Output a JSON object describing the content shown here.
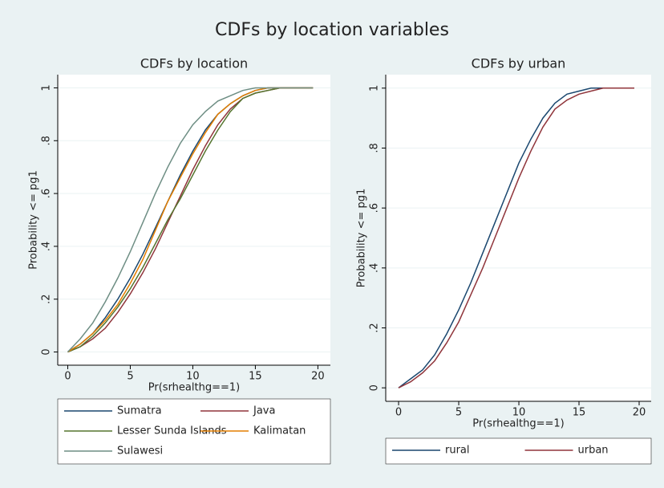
{
  "title": "CDFs by location variables",
  "chart_data": [
    {
      "type": "line",
      "title": "CDFs by location",
      "x_label": "Pr(srhealthg==1)",
      "y_label": "Probability <= pg1",
      "x": [
        0,
        1,
        2,
        3,
        4,
        5,
        6,
        7,
        8,
        9,
        10,
        11,
        12,
        13,
        14,
        15,
        16,
        17,
        18,
        19,
        19.6
      ],
      "xlim": [
        -0.8,
        21
      ],
      "xticks": [
        0,
        5,
        10,
        15,
        20
      ],
      "ylim": [
        -0.05,
        1.05
      ],
      "yticks": [
        0,
        {
          "value": 0.2,
          "label": ".2"
        },
        {
          "value": 0.4,
          "label": ".4"
        },
        {
          "value": 0.6,
          "label": ".6"
        },
        {
          "value": 0.8,
          "label": ".8"
        },
        1
      ],
      "grid": true,
      "legend": "bottom",
      "series": [
        {
          "name": "Sumatra",
          "color": "#1a476f",
          "values": [
            0,
            0.03,
            0.07,
            0.13,
            0.2,
            0.28,
            0.37,
            0.47,
            0.57,
            0.67,
            0.76,
            0.84,
            0.9,
            0.94,
            0.97,
            0.99,
            1,
            1,
            1,
            1,
            1
          ]
        },
        {
          "name": "Java",
          "color": "#90353b",
          "values": [
            0,
            0.02,
            0.05,
            0.09,
            0.15,
            0.22,
            0.3,
            0.39,
            0.49,
            0.59,
            0.69,
            0.78,
            0.86,
            0.92,
            0.96,
            0.98,
            0.99,
            1,
            1,
            1,
            1
          ]
        },
        {
          "name": "Lesser Sunda Islands",
          "color": "#55752f",
          "values": [
            0,
            0.02,
            0.06,
            0.11,
            0.17,
            0.24,
            0.32,
            0.41,
            0.5,
            0.58,
            0.67,
            0.76,
            0.84,
            0.91,
            0.96,
            0.98,
            0.99,
            1,
            1,
            1,
            1
          ]
        },
        {
          "name": "Kalimatan",
          "color": "#e37e00",
          "values": [
            0,
            0.03,
            0.07,
            0.12,
            0.18,
            0.26,
            0.35,
            0.46,
            0.57,
            0.66,
            0.75,
            0.83,
            0.9,
            0.94,
            0.97,
            0.99,
            1,
            1,
            1,
            1,
            1
          ]
        },
        {
          "name": "Sulawesi",
          "color": "#6e8e84",
          "values": [
            0,
            0.05,
            0.11,
            0.19,
            0.28,
            0.38,
            0.49,
            0.6,
            0.7,
            0.79,
            0.86,
            0.91,
            0.95,
            0.97,
            0.99,
            1,
            1,
            1,
            1,
            1,
            1
          ]
        }
      ]
    },
    {
      "type": "line",
      "title": "CDFs by urban",
      "x_label": "Pr(srhealthg==1)",
      "y_label": "Probability <= pg1",
      "x": [
        0,
        1,
        2,
        3,
        4,
        5,
        6,
        7,
        8,
        9,
        10,
        11,
        12,
        13,
        14,
        15,
        16,
        17,
        18,
        19,
        19.6
      ],
      "xlim": [
        -1.07,
        21
      ],
      "xticks": [
        0,
        5,
        10,
        15,
        20
      ],
      "ylim": [
        -0.045,
        1.045
      ],
      "yticks": [
        0,
        {
          "value": 0.2,
          "label": ".2"
        },
        {
          "value": 0.4,
          "label": ".4"
        },
        {
          "value": 0.6,
          "label": ".6"
        },
        {
          "value": 0.8,
          "label": ".8"
        },
        1
      ],
      "grid": true,
      "legend": "bottom",
      "series": [
        {
          "name": "rural",
          "color": "#1a476f",
          "values": [
            0,
            0.03,
            0.06,
            0.11,
            0.18,
            0.26,
            0.35,
            0.45,
            0.55,
            0.65,
            0.75,
            0.83,
            0.9,
            0.95,
            0.98,
            0.99,
            1,
            1,
            1,
            1,
            1
          ]
        },
        {
          "name": "urban",
          "color": "#90353b",
          "values": [
            0,
            0.02,
            0.05,
            0.09,
            0.15,
            0.22,
            0.31,
            0.4,
            0.5,
            0.6,
            0.7,
            0.79,
            0.87,
            0.93,
            0.96,
            0.98,
            0.99,
            1,
            1,
            1,
            1
          ]
        }
      ]
    }
  ]
}
